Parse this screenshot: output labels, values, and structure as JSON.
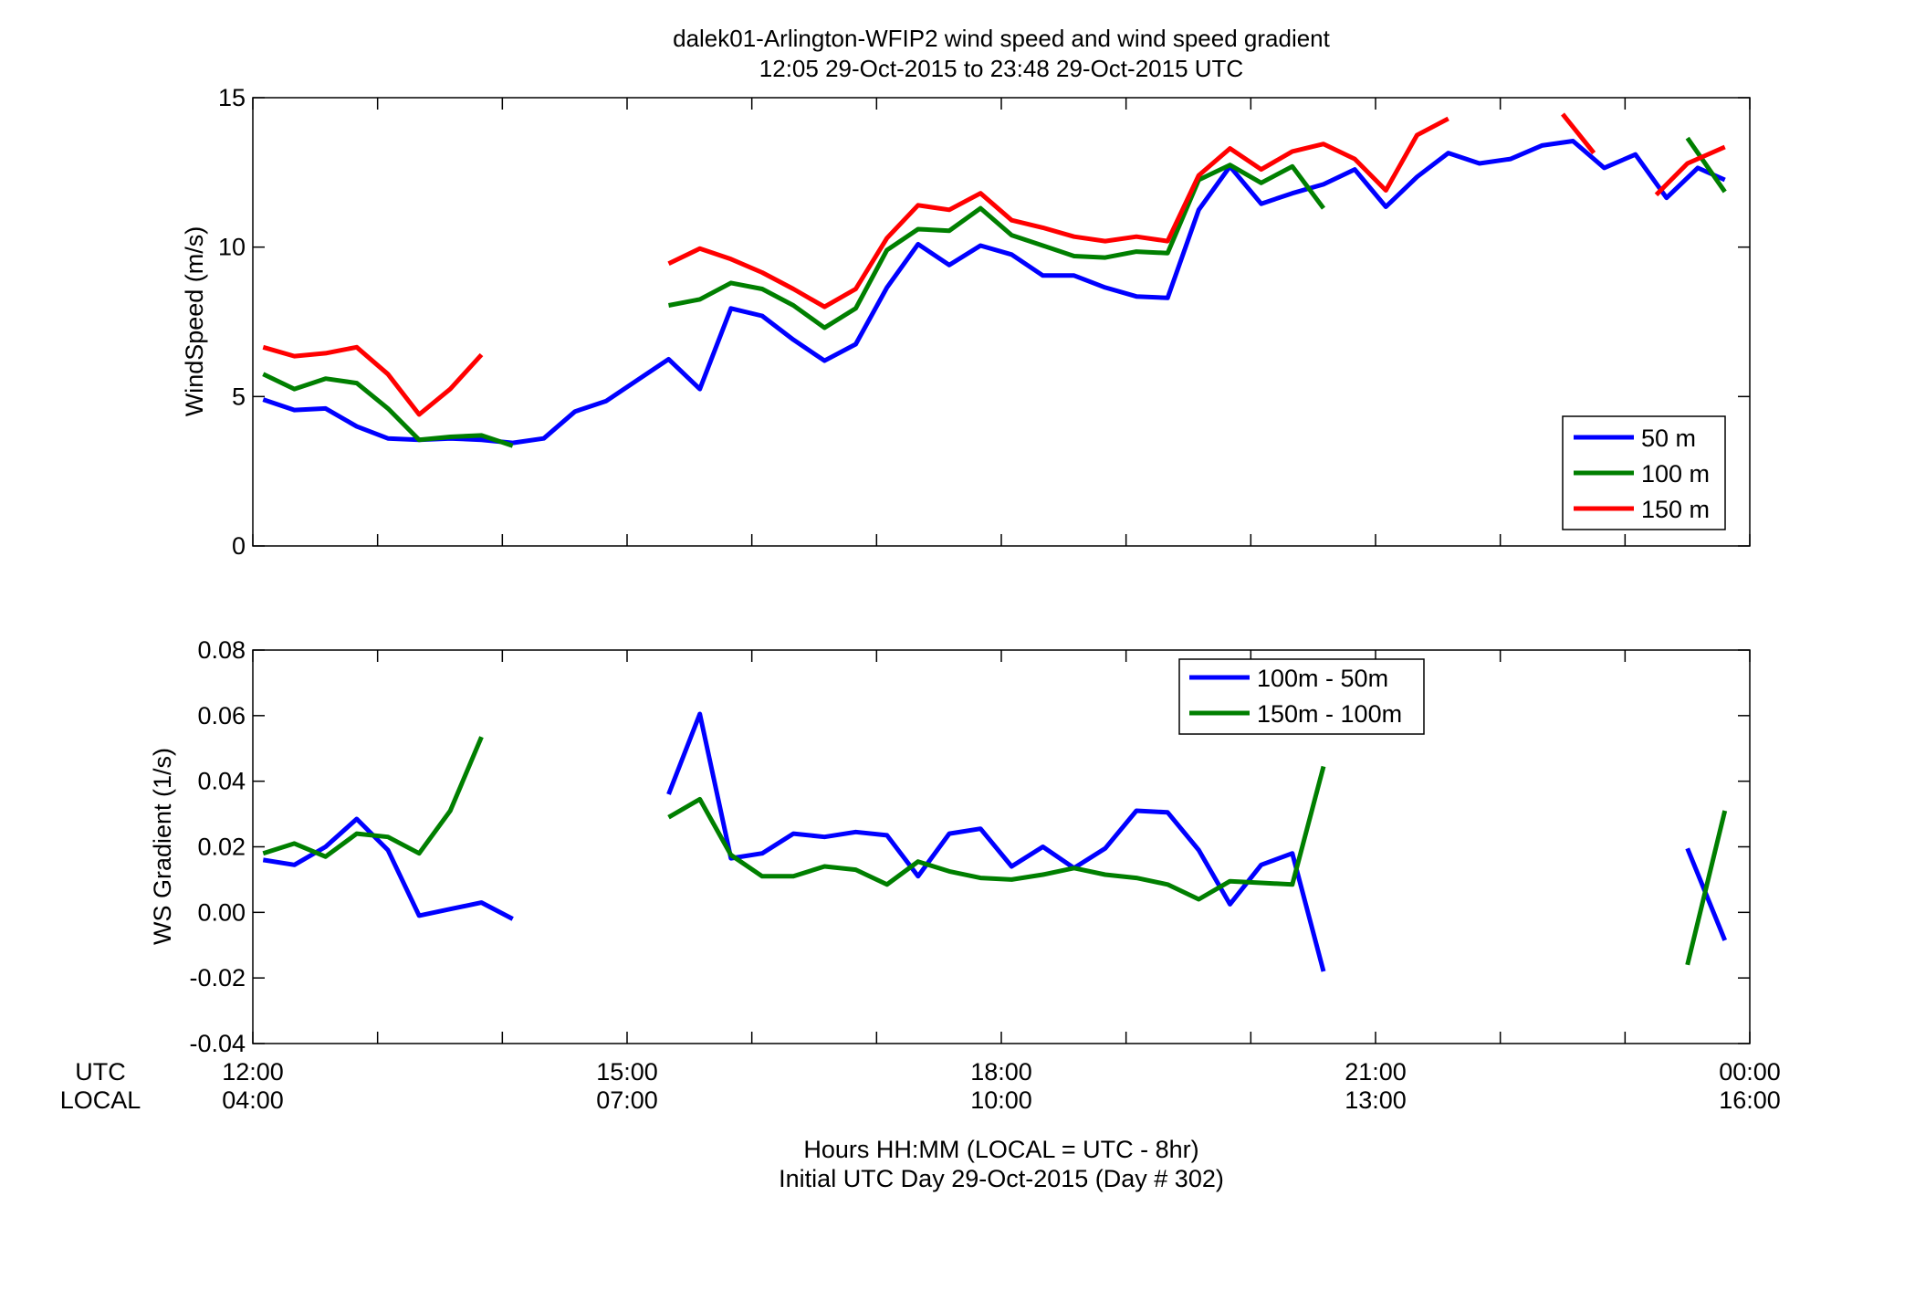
{
  "figure": {
    "title_line1": "dalek01-Arlington-WFIP2  wind speed and wind speed gradient",
    "title_line2": "12:05 29-Oct-2015 to 23:48 29-Oct-2015  UTC",
    "xlabel_line1": "Hours HH:MM  (LOCAL = UTC - 8hr)",
    "xlabel_line2": "Initial UTC Day 29-Oct-2015 (Day # 302)",
    "row_label_utc": "UTC",
    "row_label_local": "LOCAL",
    "colors": {
      "blue": "#0000ff",
      "green": "#007f00",
      "red": "#ff0000"
    }
  },
  "chart_data": [
    {
      "type": "line",
      "ylabel": "WindSpeed (m/s)",
      "xlim": [
        12,
        24
      ],
      "ylim": [
        0,
        15
      ],
      "yticks": [
        0,
        5,
        10,
        15
      ],
      "grid": false,
      "legend_position": "bottom-right",
      "series": [
        {
          "name": "50 m",
          "color": "#0000ff",
          "x": [
            12.083,
            12.333,
            12.583,
            12.833,
            13.083,
            13.333,
            13.583,
            13.833,
            14.083,
            14.333,
            14.583,
            14.833,
            15.083,
            15.333,
            15.583,
            15.833,
            16.083,
            16.333,
            16.583,
            16.833,
            17.083,
            17.333,
            17.583,
            17.833,
            18.083,
            18.333,
            18.583,
            18.833,
            19.083,
            19.333,
            19.583,
            19.833,
            20.083,
            20.333,
            20.583,
            20.833,
            21.083,
            21.333,
            21.583,
            21.833,
            22.083,
            22.333,
            22.583,
            22.833,
            23.083,
            23.333,
            23.583,
            23.8
          ],
          "y": [
            4.9,
            4.55,
            4.6,
            4.0,
            3.6,
            3.55,
            3.6,
            3.55,
            3.45,
            3.6,
            4.5,
            4.85,
            5.55,
            6.25,
            5.25,
            7.95,
            7.7,
            6.9,
            6.2,
            6.75,
            8.65,
            10.1,
            9.4,
            10.05,
            9.75,
            9.05,
            9.05,
            8.65,
            8.35,
            8.3,
            11.25,
            12.7,
            11.45,
            11.8,
            12.1,
            12.6,
            11.35,
            12.35,
            13.15,
            12.8,
            12.95,
            13.4,
            13.55,
            12.65,
            13.1,
            11.65,
            12.65,
            12.25
          ]
        },
        {
          "name": "100 m",
          "color": "#007f00",
          "x": [
            12.083,
            12.333,
            12.583,
            12.833,
            13.083,
            13.333,
            13.583,
            13.833,
            14.083,
            null,
            15.333,
            15.583,
            15.833,
            16.083,
            16.333,
            16.583,
            16.833,
            17.083,
            17.333,
            17.583,
            17.833,
            18.083,
            18.333,
            18.583,
            18.833,
            19.083,
            19.333,
            19.583,
            19.833,
            20.083,
            20.333,
            20.583,
            null,
            23.5,
            23.8
          ],
          "y": [
            5.75,
            5.25,
            5.6,
            5.45,
            4.6,
            3.55,
            3.65,
            3.7,
            3.35,
            null,
            8.05,
            8.25,
            8.8,
            8.6,
            8.05,
            7.3,
            7.95,
            9.9,
            10.6,
            10.55,
            11.3,
            10.4,
            10.05,
            9.7,
            9.65,
            9.85,
            9.8,
            12.25,
            12.75,
            12.15,
            12.7,
            11.3,
            null,
            13.65,
            11.85
          ]
        },
        {
          "name": "150 m",
          "color": "#ff0000",
          "x": [
            12.083,
            12.333,
            12.583,
            12.833,
            13.083,
            13.333,
            13.583,
            13.833,
            null,
            15.333,
            15.583,
            15.833,
            16.083,
            16.333,
            16.583,
            16.833,
            17.083,
            17.333,
            17.583,
            17.833,
            18.083,
            18.333,
            18.583,
            18.833,
            19.083,
            19.333,
            19.583,
            19.833,
            20.083,
            20.333,
            20.583,
            20.833,
            21.083,
            21.333,
            21.583,
            null,
            22.5,
            22.75,
            null,
            23.25,
            23.5,
            23.8
          ],
          "y": [
            6.65,
            6.35,
            6.45,
            6.65,
            5.75,
            4.4,
            5.25,
            6.4,
            null,
            9.45,
            9.95,
            9.6,
            9.15,
            8.6,
            8.0,
            8.6,
            10.3,
            11.4,
            11.25,
            11.8,
            10.9,
            10.65,
            10.35,
            10.2,
            10.35,
            10.2,
            12.4,
            13.3,
            12.6,
            13.2,
            13.45,
            12.95,
            11.9,
            13.75,
            14.3,
            null,
            14.45,
            13.15,
            null,
            11.75,
            12.8,
            13.35
          ]
        }
      ]
    },
    {
      "type": "line",
      "ylabel": "WS Gradient (1/s)",
      "xlim": [
        12,
        24
      ],
      "ylim": [
        -0.04,
        0.08
      ],
      "yticks": [
        -0.04,
        -0.02,
        0,
        0.02,
        0.04,
        0.06,
        0.08
      ],
      "xticks": [
        12,
        15,
        18,
        21,
        24
      ],
      "xticklabels_utc": [
        "12:00",
        "15:00",
        "18:00",
        "21:00",
        "00:00"
      ],
      "xticklabels_local": [
        "04:00",
        "07:00",
        "10:00",
        "13:00",
        "16:00"
      ],
      "grid": false,
      "legend_position": "top-center",
      "series": [
        {
          "name": "100m - 50m",
          "color": "#0000ff",
          "x": [
            12.083,
            12.333,
            12.583,
            12.833,
            13.083,
            13.333,
            13.583,
            13.833,
            14.083,
            null,
            15.333,
            15.583,
            15.833,
            16.083,
            16.333,
            16.583,
            16.833,
            17.083,
            17.333,
            17.583,
            17.833,
            18.083,
            18.333,
            18.583,
            18.833,
            19.083,
            19.333,
            19.583,
            19.833,
            20.083,
            20.333,
            20.583,
            null,
            23.5,
            23.8
          ],
          "y": [
            0.016,
            0.0145,
            0.02,
            0.0285,
            0.019,
            -0.001,
            0.001,
            0.003,
            -0.002,
            null,
            0.036,
            0.0605,
            0.0165,
            0.018,
            0.024,
            0.023,
            0.0245,
            0.0235,
            0.011,
            0.024,
            0.0255,
            0.014,
            0.02,
            0.0135,
            0.0195,
            0.031,
            0.0305,
            0.019,
            0.0025,
            0.0145,
            0.018,
            -0.018,
            null,
            0.0195,
            -0.0085
          ]
        },
        {
          "name": "150m - 100m",
          "color": "#007f00",
          "x": [
            12.083,
            12.333,
            12.583,
            12.833,
            13.083,
            13.333,
            13.583,
            13.833,
            null,
            15.333,
            15.583,
            15.833,
            16.083,
            16.333,
            16.583,
            16.833,
            17.083,
            17.333,
            17.583,
            17.833,
            18.083,
            18.333,
            18.583,
            18.833,
            19.083,
            19.333,
            19.583,
            19.833,
            20.083,
            20.333,
            20.583,
            null,
            23.5,
            23.8
          ],
          "y": [
            0.018,
            0.021,
            0.017,
            0.024,
            0.023,
            0.018,
            0.031,
            0.0535,
            null,
            0.029,
            0.0345,
            0.0175,
            0.011,
            0.011,
            0.014,
            0.013,
            0.0085,
            0.0155,
            0.0125,
            0.0105,
            0.01,
            0.0115,
            0.0135,
            0.0115,
            0.0105,
            0.0085,
            0.004,
            0.0095,
            0.009,
            0.0085,
            0.0445,
            null,
            -0.016,
            0.031
          ]
        }
      ]
    }
  ]
}
